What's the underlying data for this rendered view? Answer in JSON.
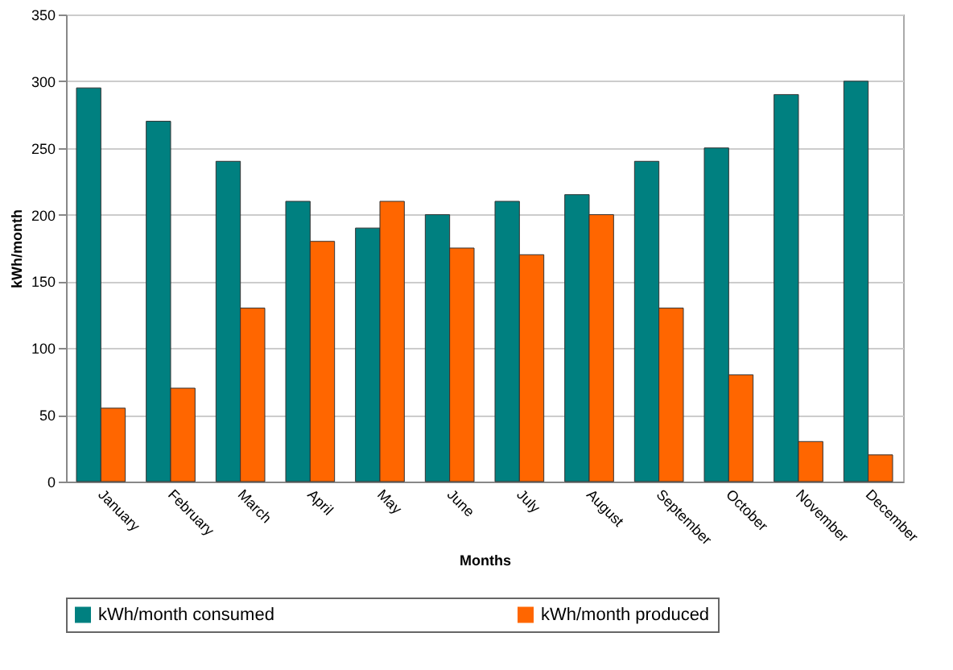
{
  "chart_data": {
    "type": "bar",
    "xlabel": "Months",
    "ylabel": "kWh/month",
    "categories": [
      "January",
      "February",
      "March",
      "April",
      "May",
      "June",
      "July",
      "August",
      "September",
      "October",
      "November",
      "December"
    ],
    "series": [
      {
        "name": "kWh/month consumed",
        "color": "#008080",
        "values": [
          295,
          270,
          240,
          210,
          190,
          200,
          210,
          215,
          240,
          250,
          290,
          300
        ]
      },
      {
        "name": "kWh/month produced",
        "color": "#ff6600",
        "values": [
          55,
          70,
          130,
          180,
          210,
          175,
          170,
          200,
          130,
          80,
          30,
          20
        ]
      }
    ],
    "ylim": [
      0,
      350
    ],
    "yticks": [
      0,
      50,
      100,
      150,
      200,
      250,
      300,
      350
    ],
    "grid": "y",
    "legend": "bottom"
  }
}
